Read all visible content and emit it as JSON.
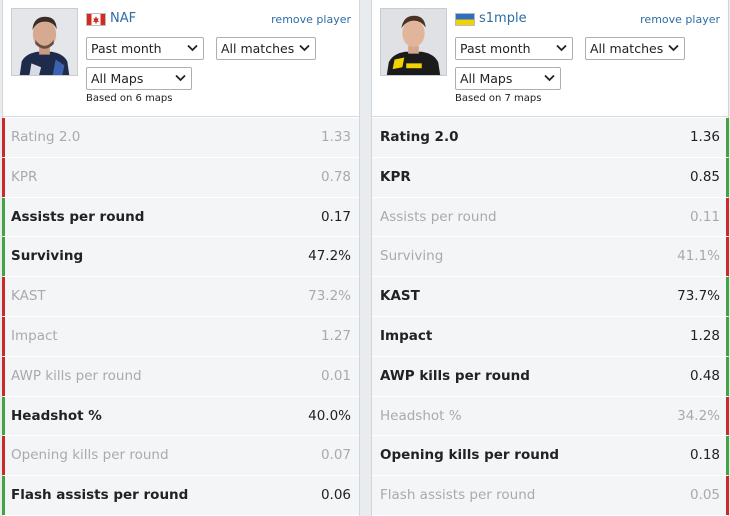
{
  "colors": {
    "win": "#45a243",
    "lose": "#cc2a2a",
    "link": "#2d6da3"
  },
  "players": [
    {
      "name": "NAF",
      "flag": "canada-flag-icon",
      "remove_label": "remove player",
      "period": "Past month",
      "matches": "All matches",
      "maps": "All Maps",
      "based_on": "Based on 6 maps",
      "stats": [
        {
          "label": "Rating 2.0",
          "value": "1.33",
          "result": "lose"
        },
        {
          "label": "KPR",
          "value": "0.78",
          "result": "lose"
        },
        {
          "label": "Assists per round",
          "value": "0.17",
          "result": "win"
        },
        {
          "label": "Surviving",
          "value": "47.2%",
          "result": "win"
        },
        {
          "label": "KAST",
          "value": "73.2%",
          "result": "lose"
        },
        {
          "label": "Impact",
          "value": "1.27",
          "result": "lose"
        },
        {
          "label": "AWP kills per round",
          "value": "0.01",
          "result": "lose"
        },
        {
          "label": "Headshot %",
          "value": "40.0%",
          "result": "win"
        },
        {
          "label": "Opening kills per round",
          "value": "0.07",
          "result": "lose"
        },
        {
          "label": "Flash assists per round",
          "value": "0.06",
          "result": "win"
        }
      ]
    },
    {
      "name": "s1mple",
      "flag": "ukraine-flag-icon",
      "remove_label": "remove player",
      "period": "Past month",
      "matches": "All matches",
      "maps": "All Maps",
      "based_on": "Based on 7 maps",
      "stats": [
        {
          "label": "Rating 2.0",
          "value": "1.36",
          "result": "win"
        },
        {
          "label": "KPR",
          "value": "0.85",
          "result": "win"
        },
        {
          "label": "Assists per round",
          "value": "0.11",
          "result": "lose"
        },
        {
          "label": "Surviving",
          "value": "41.1%",
          "result": "lose"
        },
        {
          "label": "KAST",
          "value": "73.7%",
          "result": "win"
        },
        {
          "label": "Impact",
          "value": "1.28",
          "result": "win"
        },
        {
          "label": "AWP kills per round",
          "value": "0.48",
          "result": "win"
        },
        {
          "label": "Headshot %",
          "value": "34.2%",
          "result": "lose"
        },
        {
          "label": "Opening kills per round",
          "value": "0.18",
          "result": "win"
        },
        {
          "label": "Flash assists per round",
          "value": "0.05",
          "result": "lose"
        }
      ]
    }
  ]
}
